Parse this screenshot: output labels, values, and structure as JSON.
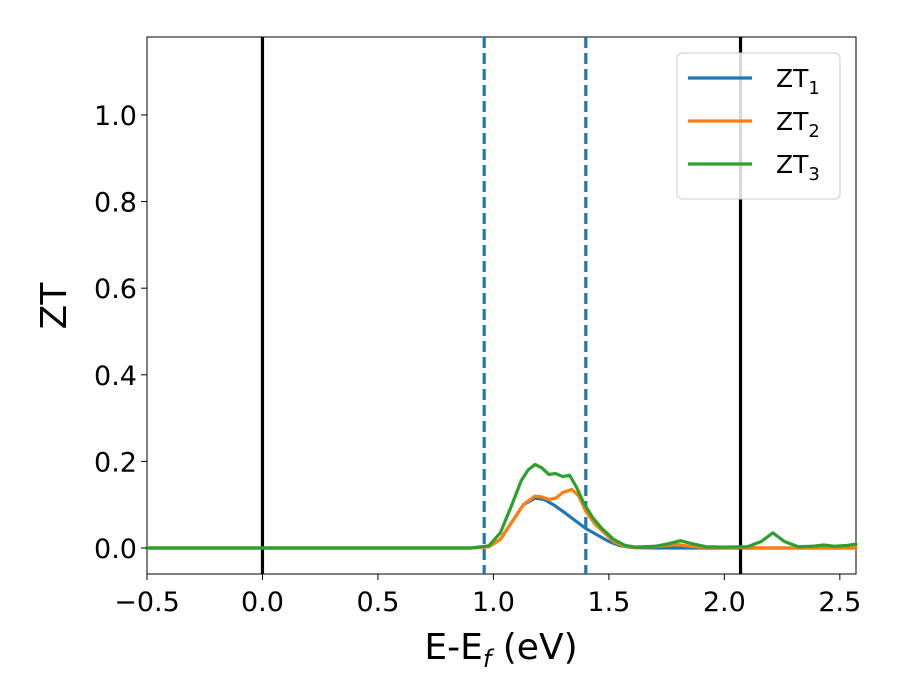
{
  "chart_data": {
    "type": "line",
    "title": "",
    "xlabel": "E-E",
    "xlabel_sub": "f",
    "xlabel_unit": " (eV)",
    "ylabel": "ZT",
    "xlim": [
      -0.5,
      2.57
    ],
    "ylim": [
      -0.06,
      1.18
    ],
    "x_ticks": [
      -0.5,
      0.0,
      0.5,
      1.0,
      1.5,
      2.0,
      2.5
    ],
    "x_tick_labels": [
      "−0.5",
      "0.0",
      "0.5",
      "1.0",
      "1.5",
      "2.0",
      "2.5"
    ],
    "y_ticks": [
      0.0,
      0.2,
      0.4,
      0.6,
      0.8,
      1.0
    ],
    "y_tick_labels": [
      "0.0",
      "0.2",
      "0.4",
      "0.6",
      "0.8",
      "1.0"
    ],
    "grid": false,
    "legend_position": "top-right",
    "vertical_lines": [
      {
        "x": 0.0,
        "style": "solid",
        "color": "#000000"
      },
      {
        "x": 2.07,
        "style": "solid",
        "color": "#000000"
      },
      {
        "x": 0.96,
        "style": "dashed",
        "color": "#1f77b4"
      },
      {
        "x": 1.4,
        "style": "dashed",
        "color": "#1f77b4"
      }
    ],
    "series": [
      {
        "name": "ZT",
        "name_sub": "1",
        "color": "#1f77b4",
        "x": [
          -0.5,
          0.9,
          0.98,
          1.03,
          1.08,
          1.13,
          1.18,
          1.22,
          1.26,
          1.3,
          1.35,
          1.4,
          1.45,
          1.5,
          1.55,
          1.6,
          1.7,
          1.8,
          1.9,
          2.0,
          2.1,
          2.2,
          2.3,
          2.4,
          2.5,
          2.57
        ],
        "y": [
          0.0,
          0.0,
          0.003,
          0.02,
          0.06,
          0.1,
          0.115,
          0.112,
          0.1,
          0.085,
          0.065,
          0.045,
          0.03,
          0.015,
          0.005,
          0.001,
          0.0,
          0.0,
          0.0,
          0.0,
          0.0,
          0.0,
          0.0,
          0.0,
          0.0,
          0.0
        ]
      },
      {
        "name": "ZT",
        "name_sub": "2",
        "color": "#ff7f0e",
        "x": [
          -0.5,
          0.9,
          0.98,
          1.03,
          1.08,
          1.13,
          1.18,
          1.21,
          1.24,
          1.27,
          1.3,
          1.34,
          1.37,
          1.4,
          1.44,
          1.48,
          1.52,
          1.56,
          1.6,
          1.7,
          1.75,
          1.8,
          1.85,
          1.9,
          2.0,
          2.1,
          2.2,
          2.3,
          2.4,
          2.5,
          2.57
        ],
        "y": [
          0.0,
          0.0,
          0.003,
          0.02,
          0.06,
          0.1,
          0.12,
          0.118,
          0.112,
          0.115,
          0.128,
          0.135,
          0.12,
          0.085,
          0.055,
          0.035,
          0.015,
          0.005,
          0.002,
          0.003,
          0.006,
          0.008,
          0.004,
          0.002,
          0.001,
          0.001,
          0.0,
          0.0,
          0.0,
          0.0,
          0.0
        ]
      },
      {
        "name": "ZT",
        "name_sub": "3",
        "color": "#2ca02c",
        "x": [
          -0.5,
          0.9,
          0.98,
          1.03,
          1.08,
          1.12,
          1.15,
          1.18,
          1.21,
          1.24,
          1.27,
          1.3,
          1.33,
          1.36,
          1.39,
          1.43,
          1.47,
          1.52,
          1.57,
          1.62,
          1.7,
          1.76,
          1.81,
          1.86,
          1.92,
          2.0,
          2.1,
          2.16,
          2.21,
          2.26,
          2.32,
          2.38,
          2.43,
          2.48,
          2.53,
          2.57
        ],
        "y": [
          0.0,
          0.0,
          0.005,
          0.035,
          0.1,
          0.155,
          0.18,
          0.193,
          0.185,
          0.17,
          0.172,
          0.165,
          0.168,
          0.14,
          0.105,
          0.07,
          0.045,
          0.02,
          0.006,
          0.002,
          0.004,
          0.01,
          0.017,
          0.01,
          0.003,
          0.002,
          0.003,
          0.015,
          0.035,
          0.015,
          0.003,
          0.004,
          0.007,
          0.004,
          0.006,
          0.009
        ]
      }
    ]
  }
}
